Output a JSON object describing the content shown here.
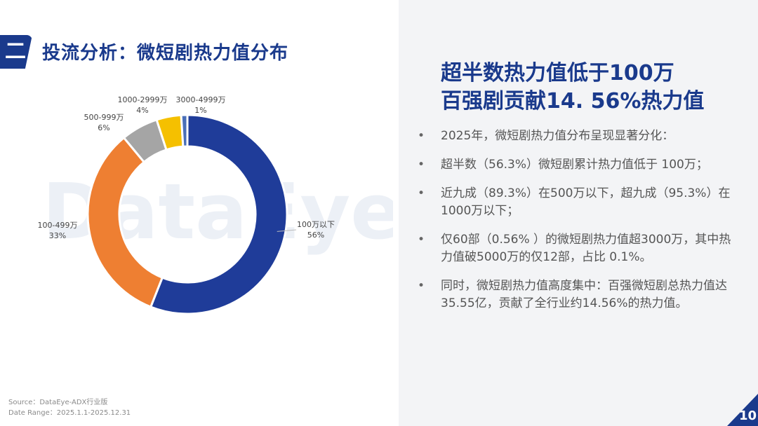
{
  "header": {
    "section_number": "二",
    "title": "投流分析：微短剧热力值分布"
  },
  "headline": {
    "line1": "超半数热力值低于100万",
    "line2": "百强剧贡献14. 56%热力值"
  },
  "bullets": [
    "2025年，微短剧热力值分布呈现显著分化：",
    "超半数（56.3%）微短剧累计热力值低于 100万；",
    "近九成（89.3%）在500万以下，超九成（95.3%）在1000万以下；",
    "仅60部（0.56% ）的微短剧热力值超3000万，其中热力值破5000万的仅12部，占比 0.1%。",
    "同时，微短剧热力值高度集中：百强微短剧总热力值达35.55亿，贡献了全行业约14.56%的热力值。"
  ],
  "bullet_symbol": "•",
  "footer": {
    "source": "Source：DataEye-ADX行业版",
    "date_range": "Date Range：2025.1.1-2025.12.31",
    "page_number": "10"
  },
  "watermark": "DataEye",
  "chart_data": {
    "type": "pie",
    "style": "donut",
    "title": "",
    "slices": [
      {
        "label": "100万以下",
        "value": 56,
        "display": "56%",
        "color": "#1f3c99"
      },
      {
        "label": "100-499万",
        "value": 33,
        "display": "33%",
        "color": "#ee7f32"
      },
      {
        "label": "500-999万",
        "value": 6,
        "display": "6%",
        "color": "#a5a5a5"
      },
      {
        "label": "1000-2999万",
        "value": 4,
        "display": "4%",
        "color": "#f5c000"
      },
      {
        "label": "3000-4999万",
        "value": 1,
        "display": "1%",
        "color": "#4a6fb8"
      }
    ]
  },
  "colors": {
    "brand_blue": "#1a3a8c",
    "panel_bg": "#f3f4f6"
  }
}
